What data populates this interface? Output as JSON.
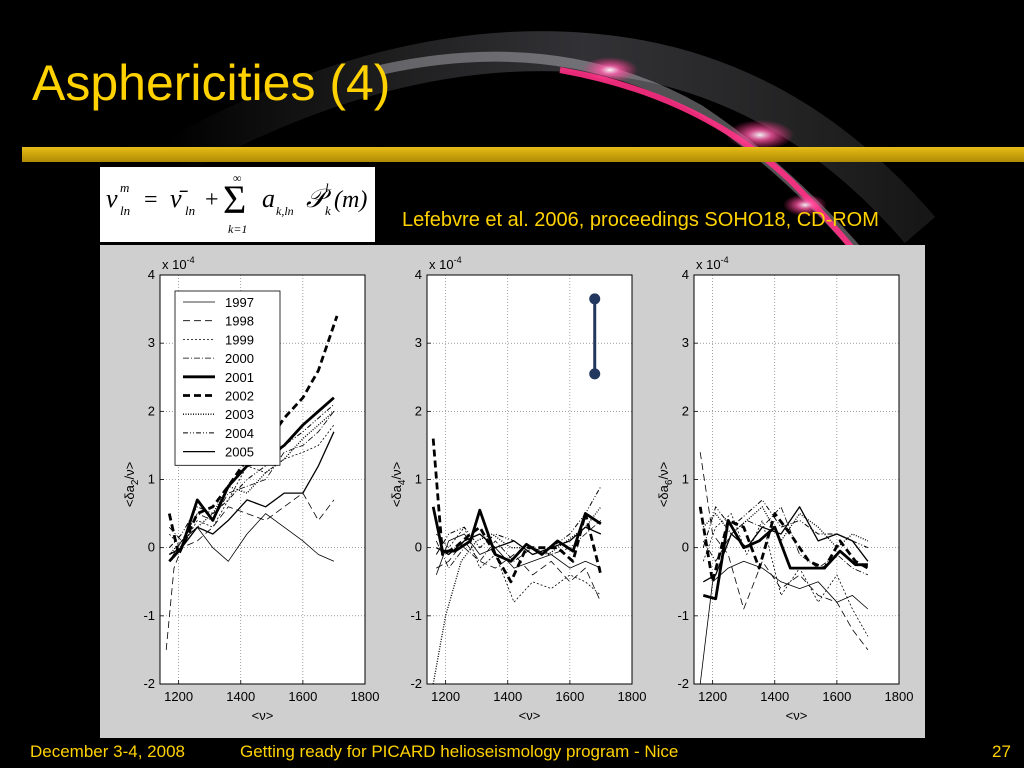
{
  "title": "Asphericities (4)",
  "citation": "Lefebvre et al. 2006, proceedings SOHO18, CD-ROM",
  "footer": {
    "date": "December 3-4, 2008",
    "event": "Getting ready for PICARD helioseismology program - Nice",
    "page": "27"
  },
  "colors": {
    "title": "#ffd200",
    "rule": "#d4a90c",
    "figure_bg": "#cfcfcf",
    "error_bar": "#22375e"
  },
  "equation": {
    "lhs": "ν",
    "lhs_sup": "m",
    "lhs_sub": "ln",
    "eq": "=",
    "nubar": "ν̄",
    "nubar_sub": "ln",
    "plus": "+",
    "sum_top": "∞",
    "sum_bottom": "k=1",
    "term": "a",
    "term_sub": "k,ln",
    "poly": "𝒫",
    "poly_sup": "l",
    "poly_sub": "k",
    "arg": "(m)"
  },
  "chart_data": [
    {
      "type": "line",
      "ylabel": "<δa2/ν>",
      "xlabel": "<ν>",
      "scale_label": "x 10-4",
      "xlim": [
        1140,
        1800
      ],
      "ylim": [
        -2,
        4
      ],
      "xticks": [
        1200,
        1400,
        1600,
        1800
      ],
      "yticks": [
        -2,
        -1,
        0,
        1,
        2,
        3,
        4
      ],
      "grid": true,
      "legend": "top-left",
      "legend_entries": [
        "1997",
        "1998",
        "1999",
        "2000",
        "2001",
        "2002",
        "2003",
        "2004",
        "2005"
      ],
      "series": [
        {
          "name": "1997",
          "x": [
            1170,
            1210,
            1260,
            1310,
            1360,
            1420,
            1480,
            1540,
            1600,
            1650,
            1700
          ],
          "y": [
            -0.2,
            0.1,
            0.3,
            0.0,
            -0.2,
            0.2,
            0.5,
            0.3,
            0.1,
            -0.1,
            -0.2
          ]
        },
        {
          "name": "1998",
          "x": [
            1160,
            1185,
            1210,
            1260,
            1310,
            1360,
            1420,
            1480,
            1540,
            1600,
            1650,
            1700
          ],
          "y": [
            -1.5,
            -0.3,
            0.0,
            0.1,
            0.3,
            0.6,
            0.5,
            0.4,
            0.6,
            0.8,
            0.4,
            0.7
          ]
        },
        {
          "name": "1999",
          "x": [
            1170,
            1210,
            1260,
            1310,
            1360,
            1420,
            1480,
            1540,
            1600,
            1650,
            1700
          ],
          "y": [
            0.2,
            0.0,
            0.4,
            0.3,
            0.7,
            1.2,
            1.1,
            1.3,
            1.4,
            1.5,
            1.8
          ]
        },
        {
          "name": "2000",
          "x": [
            1170,
            1210,
            1260,
            1310,
            1360,
            1420,
            1480,
            1540,
            1600,
            1650,
            1700
          ],
          "y": [
            0.3,
            0.1,
            0.5,
            0.4,
            0.8,
            0.9,
            1.0,
            1.4,
            1.5,
            1.7,
            2.0
          ]
        },
        {
          "name": "2001",
          "x": [
            1170,
            1210,
            1260,
            1310,
            1360,
            1420,
            1480,
            1540,
            1600,
            1650,
            1700
          ],
          "y": [
            -0.2,
            0.0,
            0.7,
            0.4,
            0.9,
            1.2,
            1.3,
            1.5,
            1.8,
            2.0,
            2.2
          ]
        },
        {
          "name": "2002",
          "x": [
            1170,
            1200,
            1260,
            1310,
            1360,
            1420,
            1480,
            1540,
            1600,
            1650,
            1710
          ],
          "y": [
            0.5,
            -0.1,
            0.5,
            0.6,
            0.9,
            1.3,
            1.5,
            1.9,
            2.2,
            2.6,
            3.4
          ]
        },
        {
          "name": "2003",
          "x": [
            1170,
            1210,
            1260,
            1310,
            1360,
            1420,
            1480,
            1540,
            1600,
            1650,
            1700
          ],
          "y": [
            -0.1,
            0.1,
            0.3,
            0.5,
            0.9,
            0.8,
            1.1,
            1.3,
            1.6,
            1.8,
            2.0
          ]
        },
        {
          "name": "2004",
          "x": [
            1170,
            1210,
            1260,
            1310,
            1360,
            1420,
            1480,
            1540,
            1600,
            1650,
            1700
          ],
          "y": [
            0.0,
            0.2,
            0.6,
            0.5,
            0.7,
            1.0,
            1.2,
            1.5,
            1.7,
            1.9,
            2.1
          ]
        },
        {
          "name": "2005",
          "x": [
            1170,
            1210,
            1260,
            1310,
            1360,
            1420,
            1480,
            1540,
            1600,
            1650,
            1700
          ],
          "y": [
            -0.1,
            0.0,
            0.3,
            0.2,
            0.4,
            0.7,
            0.6,
            0.8,
            0.8,
            1.2,
            1.7
          ]
        }
      ]
    },
    {
      "type": "line",
      "ylabel": "<δa4/ν>",
      "xlabel": "<ν>",
      "scale_label": "x 10-4",
      "xlim": [
        1140,
        1800
      ],
      "ylim": [
        -2,
        4
      ],
      "xticks": [
        1200,
        1400,
        1600,
        1800
      ],
      "yticks": [
        -2,
        -1,
        0,
        1,
        2,
        3,
        4
      ],
      "grid": true,
      "error_bar": {
        "x": 1680,
        "y_low": 2.55,
        "y_high": 3.65
      },
      "series": [
        {
          "name": "1997",
          "x": [
            1170,
            1210,
            1260,
            1310,
            1360,
            1420,
            1480,
            1540,
            1600,
            1650,
            1700
          ],
          "y": [
            -0.4,
            0.1,
            0.2,
            -0.1,
            0.0,
            -0.3,
            -0.2,
            -0.1,
            -0.3,
            -0.2,
            -0.3
          ]
        },
        {
          "name": "1998",
          "x": [
            1170,
            1210,
            1260,
            1310,
            1360,
            1420,
            1480,
            1540,
            1600,
            1650,
            1700
          ],
          "y": [
            -0.3,
            -0.2,
            0.1,
            -0.2,
            -0.3,
            -0.1,
            -0.4,
            -0.2,
            -0.5,
            -0.3,
            -0.8
          ]
        },
        {
          "name": "1999",
          "x": [
            1170,
            1210,
            1260,
            1310,
            1360,
            1420,
            1480,
            1540,
            1600,
            1650,
            1700
          ],
          "y": [
            0.2,
            0.0,
            0.3,
            -0.3,
            -0.1,
            -0.8,
            -0.5,
            -0.6,
            -0.4,
            -0.5,
            -0.7
          ]
        },
        {
          "name": "2000",
          "x": [
            1170,
            1210,
            1260,
            1310,
            1360,
            1420,
            1480,
            1540,
            1600,
            1650,
            1700
          ],
          "y": [
            0.1,
            -0.3,
            0.0,
            -0.2,
            0.1,
            -0.2,
            0.0,
            -0.1,
            0.0,
            0.2,
            0.4
          ]
        },
        {
          "name": "2001",
          "x": [
            1160,
            1190,
            1230,
            1280,
            1310,
            1360,
            1410,
            1460,
            1510,
            1560,
            1610,
            1650,
            1700
          ],
          "y": [
            0.6,
            -0.05,
            -0.05,
            0.1,
            0.55,
            -0.1,
            -0.2,
            0.05,
            -0.1,
            0.1,
            -0.05,
            0.5,
            0.35
          ]
        },
        {
          "name": "2002",
          "x": [
            1160,
            1190,
            1230,
            1280,
            1310,
            1360,
            1410,
            1460,
            1510,
            1560,
            1610,
            1650,
            1700
          ],
          "y": [
            1.6,
            -0.1,
            0.0,
            0.2,
            0.3,
            -0.1,
            -0.5,
            0.0,
            0.0,
            0.0,
            -0.2,
            0.5,
            -0.4
          ]
        },
        {
          "name": "2003",
          "x": [
            1160,
            1200,
            1250,
            1300,
            1350,
            1410,
            1470,
            1530,
            1590,
            1650,
            1700
          ],
          "y": [
            -2.0,
            -1.0,
            -0.2,
            0.1,
            0.2,
            0.0,
            0.0,
            -0.1,
            0.1,
            0.3,
            0.6
          ]
        },
        {
          "name": "2004",
          "x": [
            1170,
            1210,
            1260,
            1310,
            1360,
            1420,
            1480,
            1540,
            1600,
            1650,
            1700
          ],
          "y": [
            -0.1,
            0.2,
            0.3,
            0.0,
            0.2,
            0.1,
            -0.1,
            0.0,
            0.2,
            0.5,
            0.9
          ]
        },
        {
          "name": "2005",
          "x": [
            1170,
            1210,
            1260,
            1310,
            1360,
            1420,
            1480,
            1540,
            1600,
            1650,
            1700
          ],
          "y": [
            0.0,
            -0.1,
            0.1,
            0.2,
            0.0,
            0.1,
            -0.1,
            0.0,
            0.1,
            0.3,
            0.2
          ]
        }
      ]
    },
    {
      "type": "line",
      "ylabel": "<δa6/ν>",
      "xlabel": "<ν>",
      "scale_label": "x 10-4",
      "xlim": [
        1140,
        1800
      ],
      "ylim": [
        -2,
        4
      ],
      "xticks": [
        1200,
        1400,
        1600,
        1800
      ],
      "yticks": [
        -2,
        -1,
        0,
        1,
        2,
        3,
        4
      ],
      "grid": true,
      "series": [
        {
          "name": "1997",
          "x": [
            1160,
            1200,
            1250,
            1300,
            1360,
            1420,
            1480,
            1540,
            1600,
            1650,
            1700
          ],
          "y": [
            -2.0,
            -0.5,
            -0.3,
            -0.2,
            -0.3,
            -0.5,
            -0.6,
            -0.5,
            -0.8,
            -0.7,
            -0.9
          ]
        },
        {
          "name": "1998",
          "x": [
            1160,
            1200,
            1250,
            1300,
            1360,
            1420,
            1480,
            1540,
            1600,
            1650,
            1700
          ],
          "y": [
            1.4,
            0.2,
            -0.1,
            -0.9,
            -0.2,
            -0.6,
            -0.4,
            -0.7,
            -0.8,
            -1.2,
            -1.5
          ]
        },
        {
          "name": "1999",
          "x": [
            1170,
            1210,
            1260,
            1310,
            1360,
            1420,
            1480,
            1540,
            1600,
            1650,
            1700
          ],
          "y": [
            -0.2,
            0.3,
            0.5,
            -0.1,
            0.4,
            -0.7,
            -0.3,
            -0.8,
            -0.4,
            -0.9,
            -1.3
          ]
        },
        {
          "name": "2000",
          "x": [
            1170,
            1210,
            1260,
            1310,
            1360,
            1420,
            1480,
            1540,
            1600,
            1650,
            1700
          ],
          "y": [
            0.1,
            -0.2,
            0.2,
            0.4,
            0.3,
            0.6,
            -0.1,
            -0.3,
            -0.1,
            -0.3,
            -0.4
          ]
        },
        {
          "name": "2001",
          "x": [
            1170,
            1210,
            1250,
            1300,
            1350,
            1400,
            1450,
            1500,
            1560,
            1610,
            1660,
            1700
          ],
          "y": [
            -0.7,
            -0.75,
            0.4,
            0.0,
            0.1,
            0.3,
            -0.3,
            -0.3,
            -0.3,
            -0.05,
            -0.25,
            -0.25
          ]
        },
        {
          "name": "2002",
          "x": [
            1160,
            1200,
            1250,
            1300,
            1350,
            1400,
            1450,
            1510,
            1560,
            1610,
            1660,
            1700
          ],
          "y": [
            0.6,
            -0.5,
            0.4,
            0.3,
            -0.3,
            0.5,
            0.2,
            -0.2,
            -0.3,
            0.1,
            -0.2,
            -0.3
          ]
        },
        {
          "name": "2003",
          "x": [
            1170,
            1210,
            1260,
            1310,
            1360,
            1420,
            1480,
            1540,
            1600,
            1650,
            1700
          ],
          "y": [
            0.3,
            0.5,
            0.2,
            0.4,
            0.6,
            0.1,
            0.5,
            0.3,
            0.0,
            0.2,
            0.1
          ]
        },
        {
          "name": "2004",
          "x": [
            1170,
            1210,
            1260,
            1310,
            1360,
            1420,
            1480,
            1540,
            1600,
            1650,
            1700
          ],
          "y": [
            0.0,
            0.6,
            0.3,
            0.5,
            0.7,
            0.3,
            0.4,
            0.2,
            0.2,
            0.1,
            0.0
          ]
        },
        {
          "name": "2005",
          "x": [
            1170,
            1210,
            1260,
            1310,
            1360,
            1420,
            1480,
            1540,
            1600,
            1650,
            1700
          ],
          "y": [
            -0.5,
            -0.4,
            0.2,
            0.0,
            0.3,
            0.2,
            0.6,
            0.1,
            0.2,
            0.1,
            -0.2
          ]
        }
      ]
    }
  ]
}
